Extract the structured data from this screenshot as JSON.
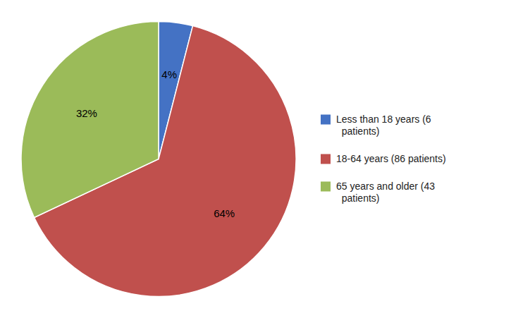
{
  "chart_data": {
    "type": "pie",
    "categories": [
      "Less than 18 years (6\n  patients)",
      "18-64 years (86 patients)",
      "65 years and older (43\n  patients)"
    ],
    "values": [
      4,
      64,
      32
    ],
    "value_labels": [
      "4%",
      "64%",
      "32%"
    ],
    "colors": [
      "#4472C4",
      "#C0504D",
      "#9BBB59"
    ],
    "data_labels": true,
    "legend": "right"
  }
}
